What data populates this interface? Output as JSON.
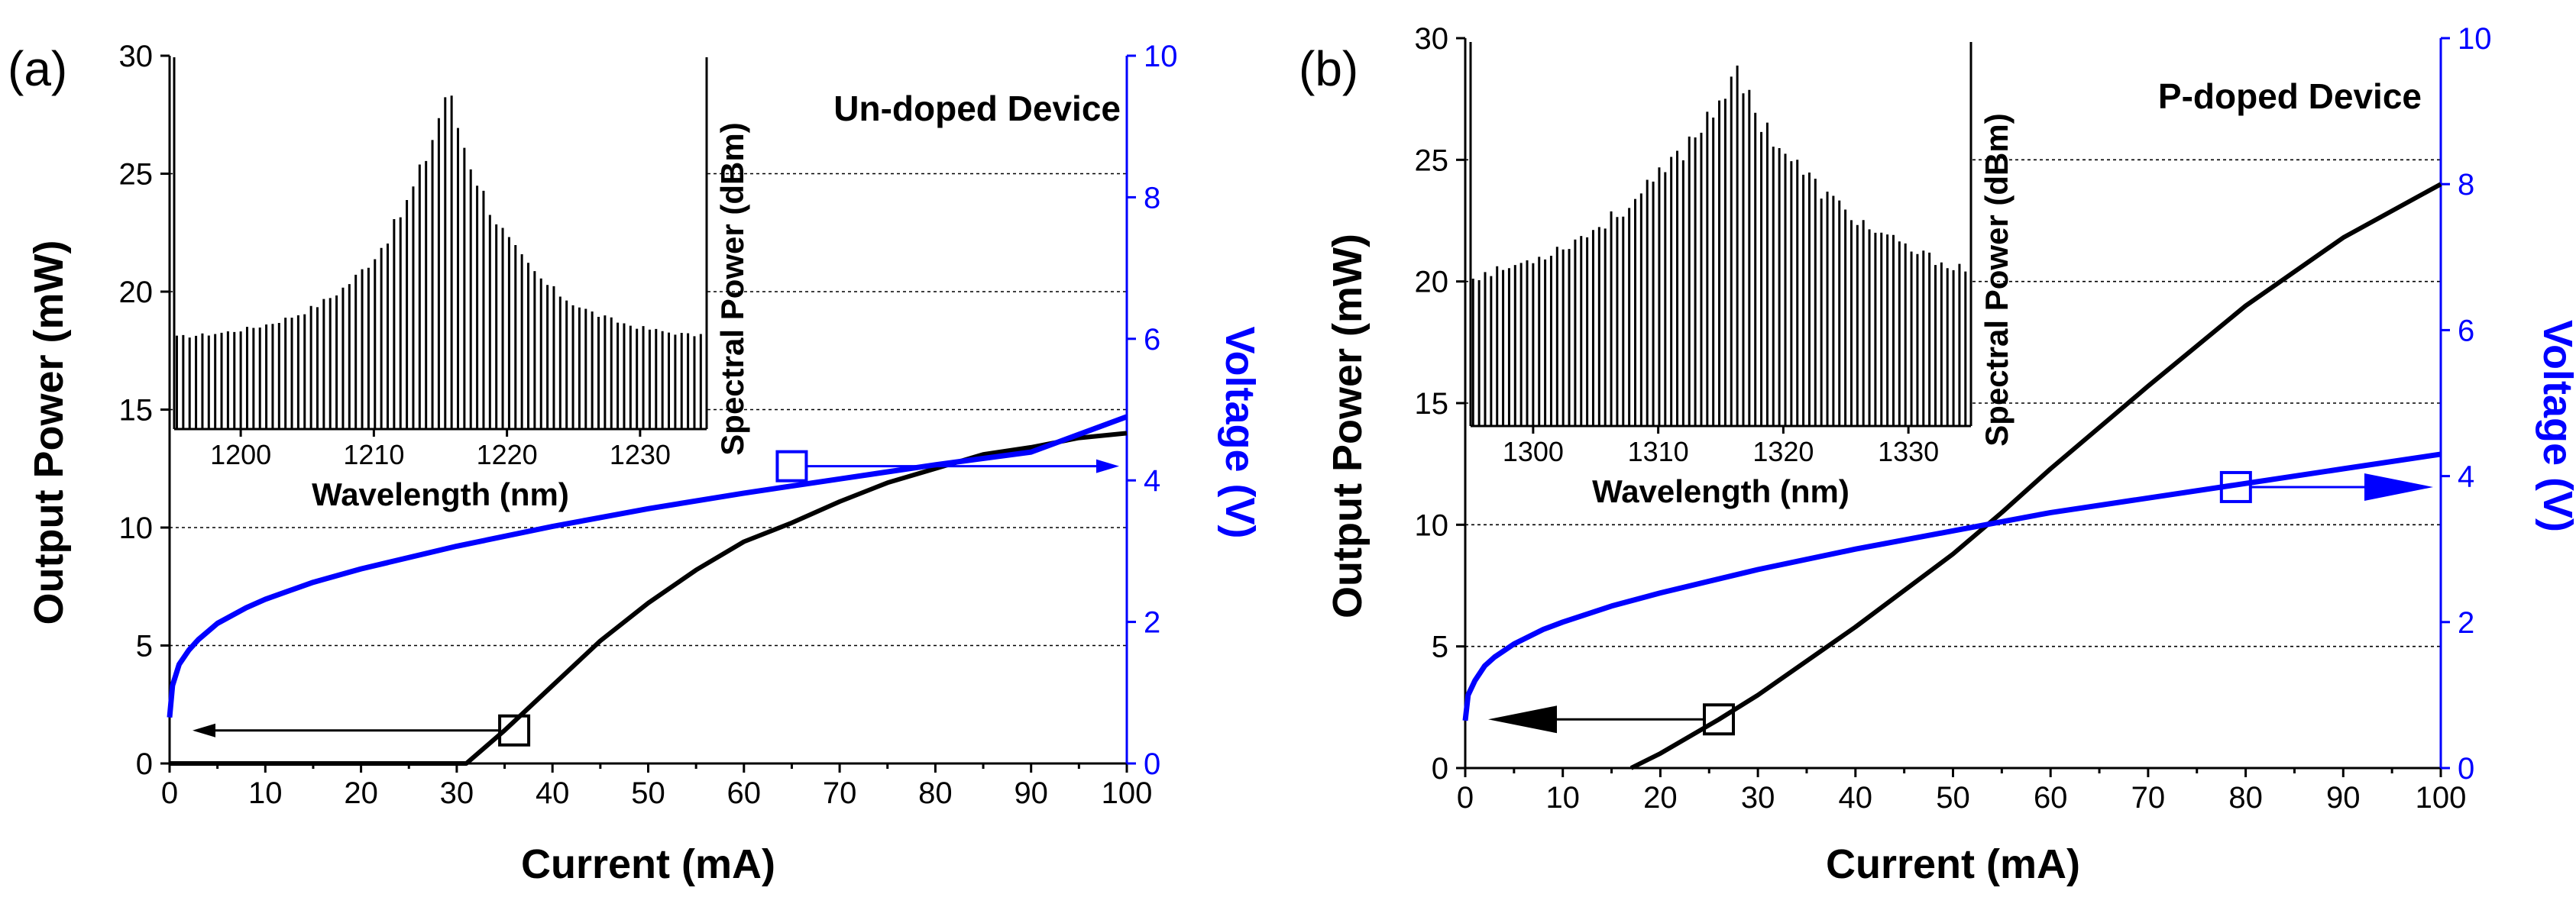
{
  "chart_data": [
    {
      "panel": "(a)",
      "type": "line",
      "annotation": "Un-doped Device",
      "xlabel": "Current (mA)",
      "ylabel": "Output Power (mW)",
      "y2label": "Voltage (V)",
      "xlim": [
        0,
        100
      ],
      "ylim": [
        0,
        30
      ],
      "y2lim": [
        0,
        10
      ],
      "xticks": [
        0,
        10,
        20,
        30,
        40,
        50,
        60,
        70,
        80,
        90,
        100
      ],
      "yticks": [
        0,
        5,
        10,
        15,
        20,
        25,
        30
      ],
      "y2ticks": [
        0,
        2,
        4,
        6,
        8,
        10
      ],
      "colors": {
        "power": "#000000",
        "voltage": "#0000ff"
      },
      "series": [
        {
          "name": "Output Power",
          "axis": "left",
          "x": [
            0,
            10,
            20,
            30,
            31,
            35,
            40,
            45,
            50,
            55,
            60,
            65,
            70,
            75,
            80,
            85,
            90,
            95,
            100
          ],
          "values": [
            0,
            0,
            0,
            0,
            0,
            1.4,
            3.3,
            5.2,
            6.8,
            8.2,
            9.4,
            10.2,
            11.1,
            11.9,
            12.5,
            13.1,
            13.4,
            13.8,
            14.0
          ]
        },
        {
          "name": "Voltage",
          "axis": "right",
          "x": [
            0,
            0.3,
            1,
            2,
            3,
            5,
            8,
            10,
            15,
            20,
            30,
            40,
            50,
            60,
            65,
            70,
            80,
            90,
            100
          ],
          "values": [
            0.65,
            1.1,
            1.4,
            1.6,
            1.75,
            1.98,
            2.2,
            2.32,
            2.56,
            2.75,
            3.07,
            3.35,
            3.6,
            3.82,
            3.92,
            4.02,
            4.22,
            4.4,
            4.9
          ]
        }
      ],
      "markers": [
        {
          "series": "Output Power",
          "x": 36,
          "value": 1.4,
          "arrow": "left"
        },
        {
          "series": "Voltage",
          "x": 65,
          "value": 4.2,
          "arrow": "right"
        }
      ],
      "inset": {
        "xlabel": "Wavelength (nm)",
        "ylabel": "Spectral Power (dBm)",
        "xlim": [
          1195,
          1235
        ],
        "xticks": [
          1200,
          1210,
          1220,
          1230
        ],
        "peak_wavelength": 1215.5,
        "mode_spacing": 0.48,
        "peak_level": 1.0,
        "floor_level": 0.1,
        "width": 4.5
      }
    },
    {
      "panel": "(b)",
      "type": "line",
      "annotation": "P-doped Device",
      "xlabel": "Current (mA)",
      "ylabel": "Output Power (mW)",
      "y2label": "Voltage (V)",
      "xlim": [
        0,
        100
      ],
      "ylim": [
        0,
        30
      ],
      "y2lim": [
        0,
        10
      ],
      "xticks": [
        0,
        10,
        20,
        30,
        40,
        50,
        60,
        70,
        80,
        90,
        100
      ],
      "yticks": [
        0,
        5,
        10,
        15,
        20,
        25,
        30
      ],
      "y2ticks": [
        0,
        2,
        4,
        6,
        8,
        10
      ],
      "colors": {
        "power": "#000000",
        "voltage": "#0000ff"
      },
      "series": [
        {
          "name": "Output Power",
          "axis": "left",
          "x": [
            17,
            20,
            26,
            30,
            40,
            50,
            55,
            60,
            70,
            80,
            90,
            100
          ],
          "values": [
            0,
            0.6,
            2.0,
            3.0,
            5.8,
            8.8,
            10.5,
            12.3,
            15.7,
            19.0,
            21.8,
            24.0
          ]
        },
        {
          "name": "Voltage",
          "axis": "right",
          "x": [
            0,
            0.3,
            1,
            2,
            3,
            5,
            8,
            10,
            15,
            20,
            30,
            40,
            50,
            60,
            70,
            80,
            90,
            100
          ],
          "values": [
            0.65,
            1.0,
            1.2,
            1.4,
            1.52,
            1.7,
            1.9,
            2.0,
            2.22,
            2.4,
            2.72,
            3.0,
            3.25,
            3.5,
            3.7,
            3.9,
            4.1,
            4.3
          ]
        }
      ],
      "markers": [
        {
          "series": "Output Power",
          "x": 26,
          "value": 2.0,
          "arrow": "left"
        },
        {
          "series": "Voltage",
          "x": 79,
          "value": 3.85,
          "arrow": "right"
        }
      ],
      "inset": {
        "xlabel": "Wavelength (nm)",
        "ylabel": "Spectral Power (dBm)",
        "xlim": [
          1295,
          1335
        ],
        "xticks": [
          1300,
          1310,
          1320,
          1330
        ],
        "peak_wavelength": 1316,
        "mode_spacing": 0.48,
        "peak_level": 1.0,
        "floor_level": 0.2,
        "width": 9.0
      }
    }
  ]
}
